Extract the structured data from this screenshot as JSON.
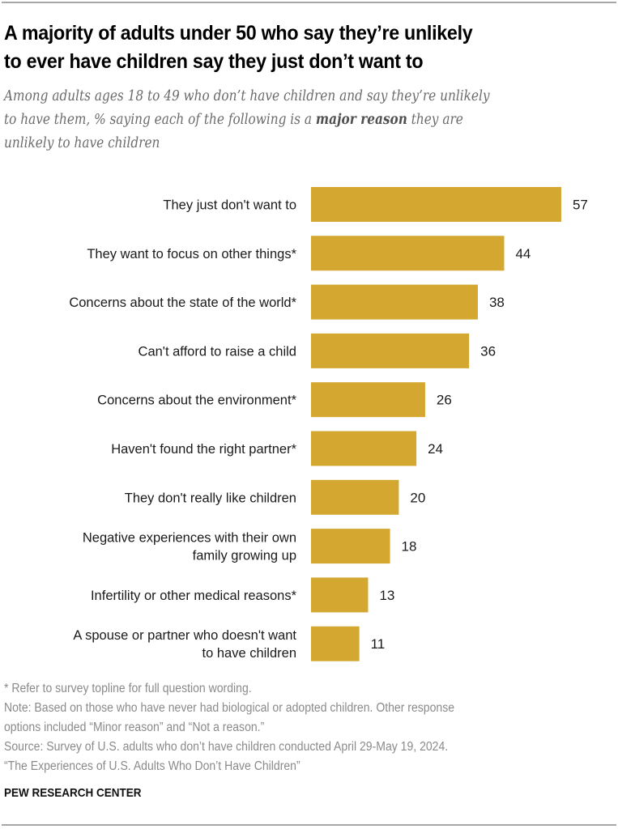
{
  "header": {
    "title_line1": "A majority of adults under 50 who say they’re unlikely",
    "title_line2": "to ever have children say they just don’t want to",
    "subtitle_line1": "Among adults ages 18 to 49 who don’t have children and say they’re unlikely",
    "subtitle_line2_pre": "to have them, % saying each of the following is a ",
    "subtitle_line2_bold": "major reason",
    "subtitle_line2_post": " they are",
    "subtitle_line3": "unlikely to have children"
  },
  "colors": {
    "bar": "#d3a730",
    "text": "#1a1a1a",
    "notes": "#8a8a8a"
  },
  "chart_data": {
    "type": "bar",
    "orientation": "horizontal",
    "title": "A majority of adults under 50 who say they’re unlikely to ever have children say they just don’t want to",
    "xlabel": "",
    "ylabel": "",
    "xlim": [
      0,
      57
    ],
    "grid": false,
    "legend": "none",
    "categories": [
      [
        "They just don't want to"
      ],
      [
        "They want to focus on other things*"
      ],
      [
        "Concerns about the state of the world*"
      ],
      [
        "Can't afford to raise a child"
      ],
      [
        "Concerns about the environment*"
      ],
      [
        "Haven't found the right partner*"
      ],
      [
        "They don't really like children"
      ],
      [
        "Negative experiences with their own",
        "family growing up"
      ],
      [
        "Infertility or other medical reasons*"
      ],
      [
        "A spouse or partner who doesn't want",
        "to have children"
      ]
    ],
    "values": [
      57,
      44,
      38,
      36,
      26,
      24,
      20,
      18,
      13,
      11
    ],
    "value_labels": [
      "57",
      "44",
      "38",
      "36",
      "26",
      "24",
      "20",
      "18",
      "13",
      "11"
    ]
  },
  "footer": {
    "notes": [
      "* Refer to survey topline for full question wording.",
      "Note: Based on those who have never had biological or adopted children. Other response",
      "options included “Minor reason” and “Not a reason.”",
      "Source: Survey of U.S. adults who don’t have children conducted April 29-May 19, 2024.",
      "“The Experiences of U.S. Adults Who Don’t Have Children”"
    ],
    "brand": "PEW RESEARCH CENTER"
  }
}
